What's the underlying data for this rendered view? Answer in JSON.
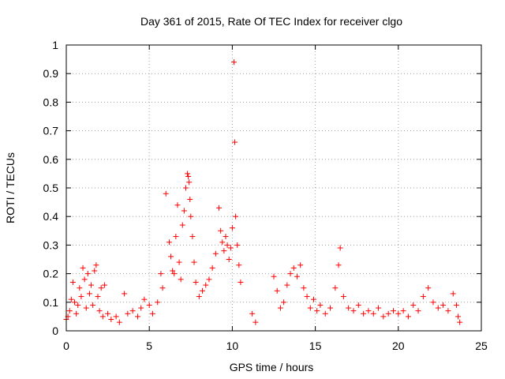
{
  "chart_data": {
    "type": "scatter",
    "title": "Day 361 of 2015, Rate Of TEC Index for receiver clgo",
    "xlabel": "GPS time / hours",
    "ylabel": "ROTI / TECUs",
    "xlim": [
      0,
      25
    ],
    "ylim": [
      0,
      1
    ],
    "x_ticks": [
      0,
      5,
      10,
      15,
      20,
      25
    ],
    "x_tick_labels": [
      "0",
      "5",
      "10",
      "15",
      "20",
      "25"
    ],
    "y_ticks": [
      0,
      0.1,
      0.2,
      0.3,
      0.4,
      0.5,
      0.6,
      0.7,
      0.8,
      0.9,
      1
    ],
    "y_tick_labels": [
      "0",
      "0.1",
      "0.2",
      "0.3",
      "0.4",
      "0.5",
      "0.6",
      "0.7",
      "0.8",
      "0.9",
      "1"
    ],
    "grid": true,
    "marker": "+",
    "color": "#ff0000",
    "series": [
      {
        "name": "ROTI",
        "points": [
          [
            0.0,
            0.04
          ],
          [
            0.1,
            0.05
          ],
          [
            0.2,
            0.07
          ],
          [
            0.3,
            0.11
          ],
          [
            0.4,
            0.17
          ],
          [
            0.5,
            0.1
          ],
          [
            0.6,
            0.06
          ],
          [
            0.7,
            0.09
          ],
          [
            0.8,
            0.15
          ],
          [
            0.9,
            0.12
          ],
          [
            1.0,
            0.22
          ],
          [
            1.1,
            0.18
          ],
          [
            1.2,
            0.08
          ],
          [
            1.3,
            0.2
          ],
          [
            1.4,
            0.13
          ],
          [
            1.5,
            0.16
          ],
          [
            1.6,
            0.09
          ],
          [
            1.7,
            0.21
          ],
          [
            1.8,
            0.23
          ],
          [
            1.9,
            0.12
          ],
          [
            2.0,
            0.07
          ],
          [
            2.1,
            0.15
          ],
          [
            2.2,
            0.05
          ],
          [
            2.3,
            0.16
          ],
          [
            2.5,
            0.06
          ],
          [
            2.7,
            0.04
          ],
          [
            3.0,
            0.05
          ],
          [
            3.2,
            0.03
          ],
          [
            3.5,
            0.13
          ],
          [
            3.7,
            0.06
          ],
          [
            4.0,
            0.07
          ],
          [
            4.3,
            0.05
          ],
          [
            4.5,
            0.08
          ],
          [
            4.7,
            0.11
          ],
          [
            5.0,
            0.09
          ],
          [
            5.2,
            0.06
          ],
          [
            5.5,
            0.1
          ],
          [
            5.7,
            0.2
          ],
          [
            5.8,
            0.15
          ],
          [
            6.0,
            0.48
          ],
          [
            6.2,
            0.31
          ],
          [
            6.3,
            0.26
          ],
          [
            6.4,
            0.21
          ],
          [
            6.5,
            0.2
          ],
          [
            6.6,
            0.33
          ],
          [
            6.7,
            0.44
          ],
          [
            6.8,
            0.24
          ],
          [
            6.9,
            0.18
          ],
          [
            7.0,
            0.37
          ],
          [
            7.1,
            0.42
          ],
          [
            7.2,
            0.5
          ],
          [
            7.3,
            0.55
          ],
          [
            7.35,
            0.54
          ],
          [
            7.4,
            0.52
          ],
          [
            7.45,
            0.46
          ],
          [
            7.5,
            0.4
          ],
          [
            7.6,
            0.33
          ],
          [
            7.7,
            0.24
          ],
          [
            7.8,
            0.17
          ],
          [
            8.0,
            0.12
          ],
          [
            8.2,
            0.14
          ],
          [
            8.4,
            0.16
          ],
          [
            8.6,
            0.18
          ],
          [
            8.8,
            0.22
          ],
          [
            9.0,
            0.27
          ],
          [
            9.2,
            0.43
          ],
          [
            9.3,
            0.35
          ],
          [
            9.4,
            0.31
          ],
          [
            9.5,
            0.28
          ],
          [
            9.6,
            0.33
          ],
          [
            9.7,
            0.3
          ],
          [
            9.8,
            0.25
          ],
          [
            9.9,
            0.29
          ],
          [
            10.0,
            0.36
          ],
          [
            10.1,
            0.94
          ],
          [
            10.15,
            0.66
          ],
          [
            10.2,
            0.4
          ],
          [
            10.3,
            0.3
          ],
          [
            10.4,
            0.23
          ],
          [
            10.5,
            0.17
          ],
          [
            11.2,
            0.06
          ],
          [
            11.4,
            0.03
          ],
          [
            12.5,
            0.19
          ],
          [
            12.7,
            0.14
          ],
          [
            12.9,
            0.08
          ],
          [
            13.1,
            0.1
          ],
          [
            13.3,
            0.16
          ],
          [
            13.5,
            0.2
          ],
          [
            13.7,
            0.22
          ],
          [
            13.9,
            0.19
          ],
          [
            14.1,
            0.23
          ],
          [
            14.3,
            0.15
          ],
          [
            14.5,
            0.12
          ],
          [
            14.7,
            0.08
          ],
          [
            14.9,
            0.11
          ],
          [
            15.1,
            0.07
          ],
          [
            15.3,
            0.09
          ],
          [
            15.6,
            0.06
          ],
          [
            15.9,
            0.08
          ],
          [
            16.2,
            0.15
          ],
          [
            16.4,
            0.23
          ],
          [
            16.5,
            0.29
          ],
          [
            16.7,
            0.12
          ],
          [
            17.0,
            0.08
          ],
          [
            17.3,
            0.07
          ],
          [
            17.6,
            0.09
          ],
          [
            17.9,
            0.06
          ],
          [
            18.2,
            0.07
          ],
          [
            18.5,
            0.06
          ],
          [
            18.8,
            0.08
          ],
          [
            19.1,
            0.05
          ],
          [
            19.4,
            0.06
          ],
          [
            19.7,
            0.07
          ],
          [
            20.0,
            0.06
          ],
          [
            20.3,
            0.07
          ],
          [
            20.6,
            0.05
          ],
          [
            20.9,
            0.09
          ],
          [
            21.2,
            0.07
          ],
          [
            21.5,
            0.12
          ],
          [
            21.8,
            0.15
          ],
          [
            22.1,
            0.1
          ],
          [
            22.4,
            0.08
          ],
          [
            22.7,
            0.09
          ],
          [
            23.0,
            0.07
          ],
          [
            23.3,
            0.13
          ],
          [
            23.5,
            0.09
          ],
          [
            23.6,
            0.05
          ],
          [
            23.7,
            0.03
          ]
        ]
      }
    ]
  }
}
